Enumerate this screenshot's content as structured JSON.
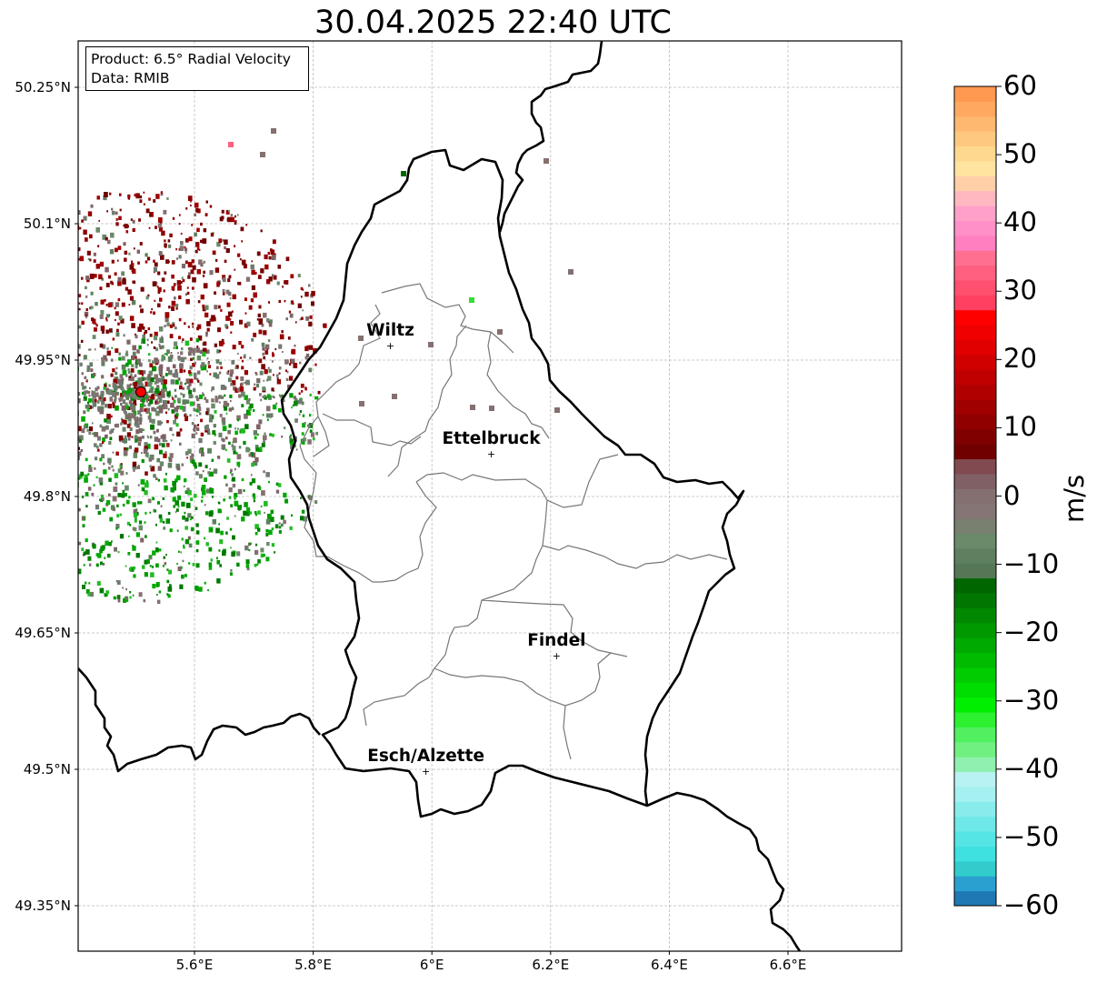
{
  "title": "30.04.2025 22:40 UTC",
  "info_box": {
    "product": "Product: 6.5° Radial Velocity",
    "data": "Data: RMIB"
  },
  "axes": {
    "lat_ticks": [
      "50.25°N",
      "50.1°N",
      "49.95°N",
      "49.8°N",
      "49.65°N",
      "49.5°N",
      "49.35°N"
    ],
    "lon_ticks": [
      "5.6°E",
      "5.8°E",
      "6°E",
      "6.2°E",
      "6.4°E",
      "6.6°E"
    ],
    "lat_range": [
      49.3,
      50.3
    ],
    "lon_range": [
      5.4,
      6.8
    ],
    "grid": true
  },
  "cities": [
    {
      "name": "Wiltz",
      "lon": 5.93,
      "lat": 49.966
    },
    {
      "name": "Ettelbruck",
      "lon": 6.1,
      "lat": 49.847
    },
    {
      "name": "Findel",
      "lon": 6.21,
      "lat": 49.625
    },
    {
      "name": "Esch/Alzette",
      "lon": 5.99,
      "lat": 49.498
    }
  ],
  "radar_site": {
    "lon": 5.505,
    "lat": 49.914,
    "color": "#ff0000"
  },
  "colorbar": {
    "label": "m/s",
    "ticks": [
      "60",
      "50",
      "40",
      "30",
      "20",
      "10",
      "0",
      "−10",
      "−20",
      "−30",
      "−40",
      "−50",
      "−60"
    ],
    "min": -60,
    "max": 60,
    "colors": [
      "#1f78b4",
      "#2aa0d0",
      "#33cccc",
      "#3fe0e0",
      "#55e5e5",
      "#6ee8e8",
      "#88ecec",
      "#a5f0f0",
      "#b8f2f2",
      "#90f0b0",
      "#70f080",
      "#50f060",
      "#2cf030",
      "#00ee00",
      "#00dd00",
      "#00cc00",
      "#00bb00",
      "#00aa00",
      "#009900",
      "#008800",
      "#007700",
      "#006600",
      "#557755",
      "#5e8060",
      "#6a8a6a",
      "#7a8070",
      "#857575",
      "#857070",
      "#806065",
      "#804a50",
      "#700000",
      "#800000",
      "#900000",
      "#a00000",
      "#b00000",
      "#c00000",
      "#d00000",
      "#e00000",
      "#f00000",
      "#ff0000",
      "#ff4060",
      "#ff5070",
      "#ff6080",
      "#ff7090",
      "#ff80c0",
      "#ff90c8",
      "#ffa0c8",
      "#ffb8c0",
      "#ffd0a8",
      "#ffe4a0",
      "#ffd890",
      "#ffc880",
      "#ffb870",
      "#ffa860",
      "#ff9850"
    ]
  }
}
